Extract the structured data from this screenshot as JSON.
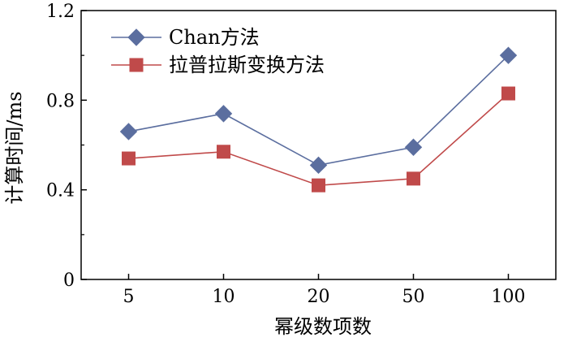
{
  "chart_data": {
    "type": "line",
    "title": "",
    "xlabel": "幂级数项数",
    "ylabel": "计算时间/ms",
    "categories": [
      "5",
      "10",
      "20",
      "50",
      "100"
    ],
    "ylim": [
      0,
      1.2
    ],
    "yticks": [
      "0",
      "0.4",
      "0.8",
      "1.2"
    ],
    "grid": false,
    "legend": "top-left",
    "series": [
      {
        "name": "Chan方法",
        "values": [
          0.66,
          0.74,
          0.51,
          0.59,
          1.0
        ],
        "color": "#5b6e9f",
        "marker": "diamond"
      },
      {
        "name": "拉普拉斯变换方法",
        "values": [
          0.54,
          0.57,
          0.42,
          0.45,
          0.83
        ],
        "color": "#c04a4a",
        "marker": "square"
      }
    ]
  }
}
